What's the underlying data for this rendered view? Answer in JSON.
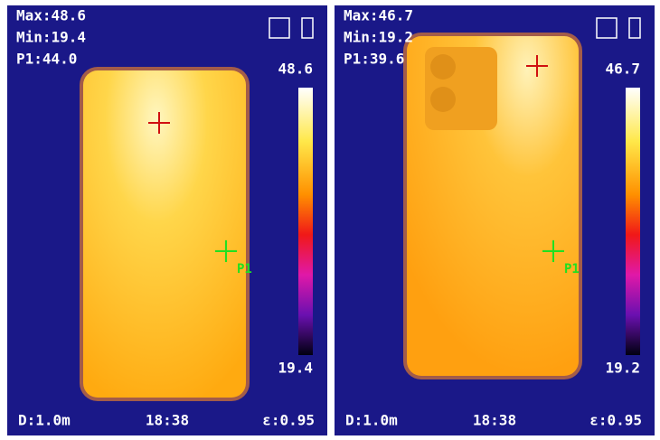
{
  "panels": [
    {
      "max": "Max:48.6",
      "min": "Min:19.4",
      "p1": "P1:44.0",
      "scale_max": "48.6",
      "scale_min": "19.4",
      "marker": "P1",
      "distance": "D:1.0m",
      "time": "18:38",
      "emissivity": "ε:0.95"
    },
    {
      "max": "Max:46.7",
      "min": "Min:19.2",
      "p1": "P1:39.6",
      "scale_max": "46.7",
      "scale_min": "19.2",
      "marker": "P1",
      "distance": "D:1.0m",
      "time": "18:38",
      "emissivity": "ε:0.95"
    }
  ]
}
